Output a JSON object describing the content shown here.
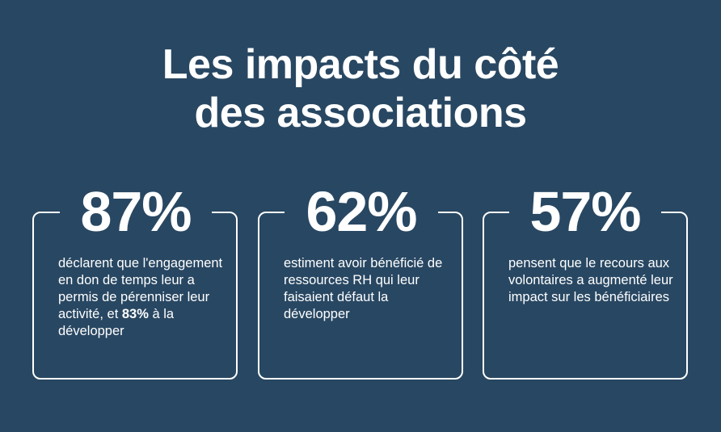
{
  "title": {
    "line1": "Les impacts du côté",
    "line2": "des associations"
  },
  "cards": [
    {
      "value": "87%",
      "text_before": "déclarent que l'engagement en don de temps leur a permis de pérenniser leur activité, et ",
      "highlight": "83%",
      "text_after": " à la développer"
    },
    {
      "value": "62%",
      "text": "estiment avoir bénéficié de ressources RH qui leur faisaient défaut la développer"
    },
    {
      "value": "57%",
      "text": "pensent que le recours aux volontaires a augmenté leur impact sur les bénéficiaires"
    }
  ],
  "colors": {
    "background": "#284762",
    "foreground": "#ffffff"
  }
}
